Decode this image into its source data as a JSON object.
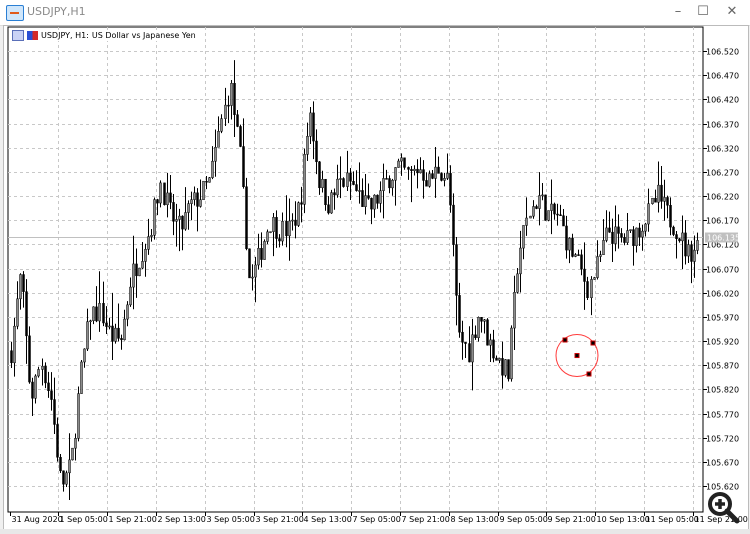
{
  "window": {
    "title": "USDJPY,H1",
    "controls": {
      "minimize": "–",
      "maximize": "☐",
      "close": "✕"
    }
  },
  "chart_header": {
    "symbol": "USDJPY, H1:",
    "description": "US Dollar vs Japanese Yen"
  },
  "icons": {
    "zoom": "zoom-in-icon",
    "app": "chart-window-icon"
  },
  "colors": {
    "bull_body": "#8c8c8c",
    "bear_body": "#000000",
    "grid": "#c8c8c8",
    "bid_line": "#c0c0c0",
    "circle_object": "#ff3b3b"
  },
  "chart_data": {
    "type": "candlestick",
    "symbol": "USDJPY",
    "timeframe": "H1",
    "grid": true,
    "ylim": [
      105.6,
      106.57
    ],
    "y_ticks": [
      "106.520",
      "106.470",
      "106.420",
      "106.370",
      "106.320",
      "106.270",
      "106.220",
      "106.170",
      "106.120",
      "106.070",
      "106.020",
      "105.970",
      "105.920",
      "105.870",
      "105.820",
      "105.770",
      "105.720",
      "105.670",
      "105.620"
    ],
    "x_ticks": [
      "31 Aug 2020",
      "1 Sep 05:00",
      "1 Sep 21:00",
      "2 Sep 13:00",
      "3 Sep 05:00",
      "3 Sep 21:00",
      "4 Sep 13:00",
      "7 Sep 05:00",
      "7 Sep 21:00",
      "8 Sep 13:00",
      "9 Sep 05:00",
      "9 Sep 21:00",
      "10 Sep 13:00",
      "11 Sep 05:00",
      "11 Sep 21:00"
    ],
    "current_price": "106.135",
    "approx_close_path": [
      105.9,
      106.06,
      105.8,
      105.88,
      105.8,
      105.62,
      105.66,
      105.85,
      105.98,
      105.98,
      105.93,
      105.92,
      106.05,
      106.1,
      106.15,
      106.25,
      106.18,
      106.15,
      106.2,
      106.22,
      106.25,
      106.36,
      106.45,
      106.3,
      106.03,
      106.1,
      106.17,
      106.15,
      106.15,
      106.2,
      106.4,
      106.25,
      106.2,
      106.25,
      106.25,
      106.22,
      106.19,
      106.22,
      106.26,
      106.28,
      106.26,
      106.28,
      106.25,
      106.28,
      106.25,
      105.93,
      105.9,
      105.98,
      105.92,
      105.88,
      105.85,
      106.1,
      106.18,
      106.22,
      106.18,
      106.18,
      106.12,
      106.08,
      106.03,
      106.08,
      106.15,
      106.13,
      106.13,
      106.15,
      106.18,
      106.22,
      106.18,
      106.15,
      106.1,
      106.12
    ],
    "objects": [
      {
        "type": "circle",
        "center_price": 105.89
      }
    ]
  }
}
